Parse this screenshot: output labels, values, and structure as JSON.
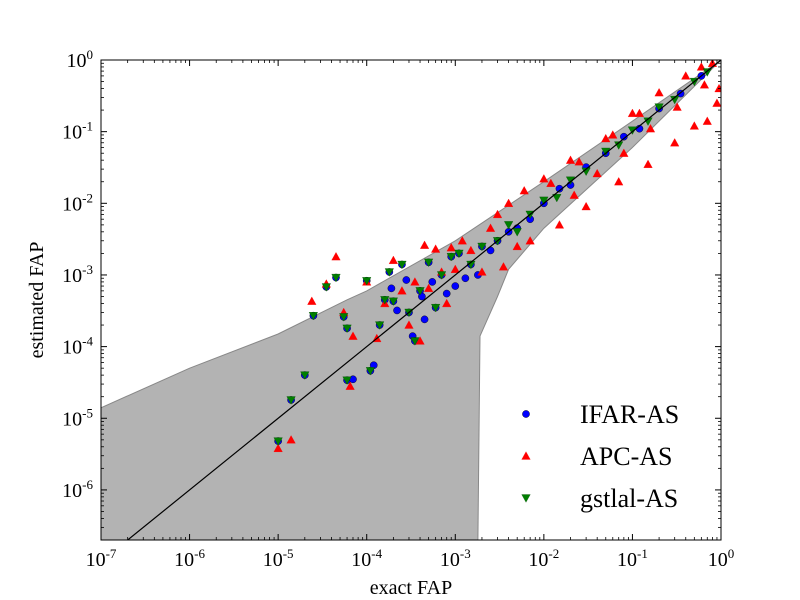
{
  "chart_data": {
    "type": "scatter",
    "title": "",
    "xlabel": "exact FAP",
    "ylabel": "estimated FAP",
    "xscale": "log",
    "yscale": "log",
    "xlim": [
      1e-07,
      1
    ],
    "ylim": [
      2e-07,
      1
    ],
    "x_ticks": [
      {
        "base": "10",
        "exp": "-7"
      },
      {
        "base": "10",
        "exp": "-6"
      },
      {
        "base": "10",
        "exp": "-5"
      },
      {
        "base": "10",
        "exp": "-4"
      },
      {
        "base": "10",
        "exp": "-3"
      },
      {
        "base": "10",
        "exp": "-2"
      },
      {
        "base": "10",
        "exp": "-1"
      },
      {
        "base": "10",
        "exp": "0"
      }
    ],
    "y_ticks": [
      {
        "base": "10",
        "exp": "-6"
      },
      {
        "base": "10",
        "exp": "-5"
      },
      {
        "base": "10",
        "exp": "-4"
      },
      {
        "base": "10",
        "exp": "-3"
      },
      {
        "base": "10",
        "exp": "-2"
      },
      {
        "base": "10",
        "exp": "-1"
      },
      {
        "base": "10",
        "exp": "0"
      }
    ],
    "grid": false,
    "legend_position": "bottom-right",
    "reference_line": {
      "x": [
        1e-07,
        1
      ],
      "y": [
        1e-07,
        1
      ]
    },
    "confidence_band": {
      "upper": [
        [
          1e-07,
          1.4e-05
        ],
        [
          1e-06,
          5e-05
        ],
        [
          1e-05,
          0.00015
        ],
        [
          6e-05,
          0.00045
        ],
        [
          0.0001,
          0.0006
        ],
        [
          0.001,
          0.003
        ],
        [
          0.01,
          0.02
        ],
        [
          0.1,
          0.14
        ],
        [
          1,
          1
        ]
      ],
      "lower": [
        [
          1e-07,
          2e-07
        ],
        [
          0.0018,
          2e-07
        ],
        [
          0.0019,
          0.00014
        ],
        [
          0.003,
          0.0005
        ],
        [
          0.004,
          0.0012
        ],
        [
          0.01,
          0.0045
        ],
        [
          0.1,
          0.06
        ],
        [
          1,
          1
        ]
      ],
      "color": "#b3b3b3"
    },
    "series": [
      {
        "name": "IFAR-AS",
        "marker": "circle",
        "color": "#0000ff",
        "points": [
          [
            1e-05,
            4.8e-06
          ],
          [
            1.4e-05,
            1.8e-05
          ],
          [
            2e-05,
            4e-05
          ],
          [
            2.5e-05,
            0.00027
          ],
          [
            3.5e-05,
            0.00068
          ],
          [
            4.5e-05,
            0.00092
          ],
          [
            5.5e-05,
            0.00026
          ],
          [
            6e-05,
            0.00018
          ],
          [
            6e-05,
            3.4e-05
          ],
          [
            7e-05,
            3.5e-05
          ],
          [
            0.0001,
            0.00083
          ],
          [
            0.00011,
            4.6e-05
          ],
          [
            0.00012,
            5.5e-05
          ],
          [
            0.00014,
            0.0002
          ],
          [
            0.00016,
            0.00045
          ],
          [
            0.00018,
            0.0011
          ],
          [
            0.00019,
            0.00065
          ],
          [
            0.0002,
            0.00043
          ],
          [
            0.00022,
            0.00032
          ],
          [
            0.00025,
            0.0014
          ],
          [
            0.00028,
            0.00085
          ],
          [
            0.0003,
            0.0003
          ],
          [
            0.00033,
            0.00014
          ],
          [
            0.00035,
            0.00012
          ],
          [
            0.0004,
            0.0006
          ],
          [
            0.00042,
            0.0005
          ],
          [
            0.00045,
            0.00024
          ],
          [
            0.0005,
            0.0015
          ],
          [
            0.00055,
            0.0008
          ],
          [
            0.0006,
            0.00035
          ],
          [
            0.0007,
            0.001
          ],
          [
            0.0008,
            0.00055
          ],
          [
            0.0009,
            0.0018
          ],
          [
            0.001,
            0.0007
          ],
          [
            0.0011,
            0.002
          ],
          [
            0.0013,
            0.0009
          ],
          [
            0.0015,
            0.0014
          ],
          [
            0.0018,
            0.001
          ],
          [
            0.002,
            0.0025
          ],
          [
            0.0025,
            0.0022
          ],
          [
            0.003,
            0.003
          ],
          [
            0.004,
            0.004
          ],
          [
            0.005,
            0.0045
          ],
          [
            0.007,
            0.006
          ],
          [
            0.01,
            0.01
          ],
          [
            0.015,
            0.016
          ],
          [
            0.02,
            0.018
          ],
          [
            0.03,
            0.032
          ],
          [
            0.05,
            0.05
          ],
          [
            0.08,
            0.085
          ],
          [
            0.12,
            0.11
          ],
          [
            0.2,
            0.21
          ],
          [
            0.35,
            0.34
          ],
          [
            0.6,
            0.6
          ]
        ]
      },
      {
        "name": "APC-AS",
        "marker": "triangle-up",
        "color": "#ff0000",
        "points": [
          [
            1e-05,
            3.8e-06
          ],
          [
            1.4e-05,
            5e-06
          ],
          [
            2.4e-05,
            0.00043
          ],
          [
            3.5e-05,
            0.00075
          ],
          [
            4.5e-05,
            0.0018
          ],
          [
            5.5e-05,
            0.0003
          ],
          [
            6.5e-05,
            2.8e-05
          ],
          [
            7e-05,
            0.00014
          ],
          [
            0.0001,
            0.0008
          ],
          [
            0.00013,
            0.00013
          ],
          [
            0.00016,
            0.0004
          ],
          [
            0.0002,
            0.0016
          ],
          [
            0.00025,
            0.0006
          ],
          [
            0.0003,
            0.0002
          ],
          [
            0.00035,
            0.0008
          ],
          [
            0.0004,
            0.00012
          ],
          [
            0.00045,
            0.0026
          ],
          [
            0.0005,
            0.00065
          ],
          [
            0.0006,
            0.0023
          ],
          [
            0.0007,
            0.0011
          ],
          [
            0.0008,
            0.0004
          ],
          [
            0.0009,
            0.0024
          ],
          [
            0.001,
            0.0012
          ],
          [
            0.0012,
            0.003
          ],
          [
            0.0015,
            0.0022
          ],
          [
            0.002,
            0.0011
          ],
          [
            0.0025,
            0.0045
          ],
          [
            0.003,
            0.007
          ],
          [
            0.0035,
            0.0013
          ],
          [
            0.004,
            0.01
          ],
          [
            0.005,
            0.0025
          ],
          [
            0.006,
            0.015
          ],
          [
            0.007,
            0.003
          ],
          [
            0.01,
            0.022
          ],
          [
            0.015,
            0.005
          ],
          [
            0.02,
            0.04
          ],
          [
            0.03,
            0.009
          ],
          [
            0.05,
            0.08
          ],
          [
            0.07,
            0.02
          ],
          [
            0.1,
            0.18
          ],
          [
            0.15,
            0.035
          ],
          [
            0.2,
            0.35
          ],
          [
            0.3,
            0.07
          ],
          [
            0.4,
            0.6
          ],
          [
            0.5,
            0.12
          ],
          [
            0.6,
            0.8
          ],
          [
            0.7,
            0.14
          ],
          [
            0.8,
            0.9
          ],
          [
            0.9,
            0.25
          ],
          [
            0.95,
            0.4
          ],
          [
            0.022,
            0.013
          ],
          [
            0.04,
            0.026
          ],
          [
            0.08,
            0.05
          ],
          [
            0.16,
            0.11
          ],
          [
            0.32,
            0.22
          ],
          [
            0.65,
            0.45
          ],
          [
            0.012,
            0.019
          ],
          [
            0.025,
            0.038
          ],
          [
            0.06,
            0.09
          ],
          [
            0.12,
            0.18
          ]
        ]
      },
      {
        "name": "gstlal-AS",
        "marker": "triangle-down",
        "color": "#007f00",
        "points": [
          [
            1e-05,
            4.8e-06
          ],
          [
            1.4e-05,
            1.8e-05
          ],
          [
            2e-05,
            4e-05
          ],
          [
            2.5e-05,
            0.00027
          ],
          [
            3.5e-05,
            0.00068
          ],
          [
            4.5e-05,
            0.00092
          ],
          [
            5.5e-05,
            0.00026
          ],
          [
            6e-05,
            0.00018
          ],
          [
            6e-05,
            3.4e-05
          ],
          [
            0.0001,
            0.00083
          ],
          [
            0.00011,
            4.6e-05
          ],
          [
            0.00014,
            0.0002
          ],
          [
            0.00016,
            0.00045
          ],
          [
            0.00018,
            0.0011
          ],
          [
            0.0002,
            0.00043
          ],
          [
            0.00025,
            0.0014
          ],
          [
            0.0003,
            0.0003
          ],
          [
            0.00035,
            0.00012
          ],
          [
            0.0004,
            0.0006
          ],
          [
            0.0005,
            0.0015
          ],
          [
            0.0006,
            0.00035
          ],
          [
            0.0007,
            0.001
          ],
          [
            0.0009,
            0.0018
          ],
          [
            0.0011,
            0.002
          ],
          [
            0.0015,
            0.0014
          ],
          [
            0.002,
            0.0025
          ],
          [
            0.003,
            0.003
          ],
          [
            0.004,
            0.005
          ],
          [
            0.005,
            0.004
          ],
          [
            0.007,
            0.007
          ],
          [
            0.01,
            0.011
          ],
          [
            0.014,
            0.012
          ],
          [
            0.02,
            0.021
          ],
          [
            0.03,
            0.028
          ],
          [
            0.05,
            0.053
          ],
          [
            0.07,
            0.065
          ],
          [
            0.1,
            0.105
          ],
          [
            0.15,
            0.14
          ],
          [
            0.2,
            0.22
          ],
          [
            0.3,
            0.28
          ],
          [
            0.5,
            0.5
          ],
          [
            0.7,
            0.68
          ]
        ]
      }
    ]
  }
}
